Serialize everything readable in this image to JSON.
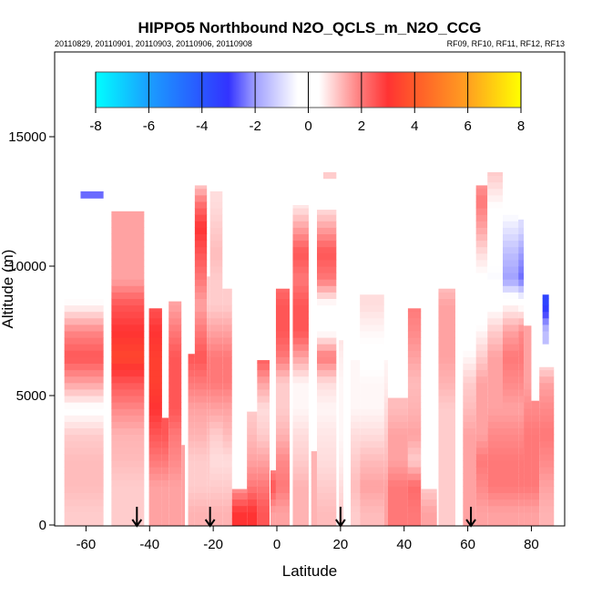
{
  "chart_data": {
    "type": "heatmap",
    "title": "HIPPO5 Northbound N2O_QCLS_m_N2O_CCG",
    "subtitle_left": "20110829, 20110901, 20110903, 20110906, 20110908",
    "subtitle_right": "RF09, RF10, RF11, RF12, RF13",
    "xlabel": "Latitude",
    "ylabel": "Altitude (m)",
    "xlim": [
      -70,
      90
    ],
    "ylim": [
      0,
      18300
    ],
    "xticks": [
      -60,
      -40,
      -20,
      0,
      20,
      40,
      60,
      80
    ],
    "yticks": [
      0,
      5000,
      10000,
      15000
    ],
    "colorbar": {
      "range": [
        -8,
        8
      ],
      "ticks": [
        -8,
        -6,
        -4,
        -2,
        0,
        2,
        4,
        6,
        8
      ],
      "stops": [
        {
          "v": -8,
          "c": "#00ffff"
        },
        {
          "v": -6,
          "c": "#1a9eff"
        },
        {
          "v": -4,
          "c": "#2a55ff"
        },
        {
          "v": -3,
          "c": "#3333ff"
        },
        {
          "v": -2,
          "c": "#a0a0ff"
        },
        {
          "v": -0.4,
          "c": "#ffffff"
        },
        {
          "v": 0.4,
          "c": "#ffffff"
        },
        {
          "v": 2,
          "c": "#ff7878"
        },
        {
          "v": 3,
          "c": "#ff3333"
        },
        {
          "v": 4,
          "c": "#ff5a2a"
        },
        {
          "v": 6,
          "c": "#ffa020"
        },
        {
          "v": 8,
          "c": "#ffff00"
        }
      ]
    },
    "bin_m": 1000,
    "columns": [
      {
        "lat": [
          -66.8,
          -54.5
        ],
        "alt": [
          0,
          12360
        ],
        "v": [
          1,
          1.2,
          1.2,
          1,
          0.3,
          1.5,
          2.5,
          1.8,
          0.5,
          0,
          0,
          0.2,
          0.3
        ]
      },
      {
        "lat": [
          -61.7,
          -54.5
        ],
        "alt": [
          12630,
          12890
        ],
        "v": [
          -2.5
        ]
      },
      {
        "lat": [
          -52,
          -41.7
        ],
        "alt": [
          0,
          12120
        ],
        "v": [
          1,
          1,
          1.2,
          1.3,
          1.8,
          2.5,
          3.5,
          3,
          2.5,
          1.5,
          1.5,
          1.5,
          1.5
        ]
      },
      {
        "lat": [
          -40.2,
          -36.1
        ],
        "alt": [
          0,
          8370
        ],
        "v": [
          1.5,
          1.5,
          2,
          2.5,
          3,
          3.3,
          3.3,
          3,
          2.5
        ]
      },
      {
        "lat": [
          -36.1,
          -34
        ],
        "alt": [
          0,
          4140
        ],
        "v": [
          1.5,
          1.5,
          2,
          2.5,
          2.5
        ]
      },
      {
        "lat": [
          -34,
          -30
        ],
        "alt": [
          0,
          8640
        ],
        "v": [
          1.5,
          1.5,
          1.8,
          2,
          2.5,
          2.5,
          2.5,
          2,
          1.5
        ]
      },
      {
        "lat": [
          -30,
          -28.9
        ],
        "alt": [
          0,
          3090
        ],
        "v": [
          1.5,
          1.5,
          1.5,
          1.5
        ]
      },
      {
        "lat": [
          -27.9,
          -25.8
        ],
        "alt": [
          0,
          6610
        ],
        "v": [
          1.3,
          1,
          1,
          1.3,
          1.5,
          2,
          2.5
        ]
      },
      {
        "lat": [
          -25.8,
          -22
        ],
        "alt": [
          0,
          13120
        ],
        "v": [
          1.3,
          1,
          1,
          1.3,
          1.5,
          2,
          2.5,
          2,
          1.5,
          2,
          2.5,
          3,
          2,
          0.5
        ]
      },
      {
        "lat": [
          -22,
          -21
        ],
        "alt": [
          0,
          9600
        ],
        "v": [
          1.3,
          1,
          1,
          1.2,
          1.5,
          2,
          2,
          1.5,
          1,
          1
        ]
      },
      {
        "lat": [
          -21,
          -17.1
        ],
        "alt": [
          0,
          12890
        ],
        "v": [
          1.3,
          1,
          0.8,
          1,
          1.5,
          2,
          2,
          1.5,
          1,
          1,
          1.2,
          1,
          0.8
        ]
      },
      {
        "lat": [
          -17.1,
          -14.1
        ],
        "alt": [
          0,
          9130
        ],
        "v": [
          1.3,
          1,
          0.8,
          1.2,
          1.5,
          2,
          2,
          1.5,
          1,
          1
        ]
      },
      {
        "lat": [
          -14.1,
          -9.4
        ],
        "alt": [
          0,
          1390
        ],
        "v": [
          3,
          1.5
        ]
      },
      {
        "lat": [
          -9.4,
          -6.2
        ],
        "alt": [
          0,
          4380
        ],
        "v": [
          3,
          2,
          1.5,
          1.2,
          1
        ]
      },
      {
        "lat": [
          -6.2,
          -2.3
        ],
        "alt": [
          0,
          6370
        ],
        "v": [
          2.5,
          2,
          1.5,
          1,
          0.8,
          1.5,
          2.5
        ]
      },
      {
        "lat": [
          -2,
          -0.3
        ],
        "alt": [
          0,
          2110
        ],
        "v": [
          1.5,
          2.5,
          1.5
        ]
      },
      {
        "lat": [
          -0.3,
          4
        ],
        "alt": [
          0,
          9130
        ],
        "v": [
          1.5,
          2,
          1.8,
          1.3,
          1,
          1,
          2,
          2.5,
          2.5,
          2
        ]
      },
      {
        "lat": [
          5,
          10
        ],
        "alt": [
          0,
          12360
        ],
        "v": [
          1.3,
          1.3,
          1,
          0.8,
          0.5,
          0.5,
          1.5,
          2.5,
          2.5,
          2,
          2.5,
          1.5,
          0.5
        ]
      },
      {
        "lat": [
          10.8,
          12.6
        ],
        "alt": [
          0,
          2850
        ],
        "v": [
          1.3,
          1.3,
          1.3
        ]
      },
      {
        "lat": [
          12.6,
          18.7
        ],
        "alt": [
          0,
          12180
        ],
        "v": [
          1.2,
          1,
          0.8,
          0.7,
          0.5,
          0.8,
          2,
          0.3,
          0.3,
          2,
          2.5,
          1.5,
          0.5
        ]
      },
      {
        "lat": [
          14.6,
          18.7
        ],
        "alt": [
          13390,
          13630
        ],
        "v": [
          1
        ]
      },
      {
        "lat": [
          19.5,
          20.9
        ],
        "alt": [
          0,
          7140
        ],
        "v": [
          1,
          0.8,
          0.6,
          0.5,
          0.5,
          0.5,
          0.6,
          0.8
        ]
      },
      {
        "lat": [
          23.2,
          26.1
        ],
        "alt": [
          0,
          6370
        ],
        "v": [
          1,
          1.2,
          1,
          0.8,
          0.5,
          0.5,
          0.5
        ]
      },
      {
        "lat": [
          26.1,
          33.7
        ],
        "alt": [
          0,
          8900
        ],
        "v": [
          1.2,
          1.5,
          1.2,
          0.8,
          0.5,
          0.5,
          0.3,
          0.5,
          0.8
        ]
      },
      {
        "lat": [
          33.7,
          34.9
        ],
        "alt": [
          0,
          6370
        ],
        "v": [
          1.5,
          1.5,
          1.2,
          1,
          0.8,
          0.6,
          0.5
        ]
      },
      {
        "lat": [
          34.9,
          41.2
        ],
        "alt": [
          0,
          4910
        ],
        "v": [
          2,
          2,
          1.5,
          1.5,
          1.2
        ]
      },
      {
        "lat": [
          41.2,
          45.3
        ],
        "alt": [
          0,
          8370
        ],
        "v": [
          2,
          2.2,
          1,
          1.5,
          1.3,
          1.2,
          1.5,
          1.8,
          2
        ]
      },
      {
        "lat": [
          45.3,
          50.3
        ],
        "alt": [
          0,
          1390
        ],
        "v": [
          1.5,
          1
        ]
      },
      {
        "lat": [
          50.8,
          56.1
        ],
        "alt": [
          0,
          9130
        ],
        "v": [
          1,
          1,
          1,
          1,
          1,
          1.3,
          1.5,
          1.5,
          1.5,
          1
        ]
      },
      {
        "lat": [
          58.5,
          62.6
        ],
        "alt": [
          0,
          8900
        ],
        "v": [
          1.5,
          1.5,
          1.5,
          1.5,
          1.2,
          1,
          0.5,
          0.2,
          0.3
        ]
      },
      {
        "lat": [
          62.6,
          66.2
        ],
        "alt": [
          0,
          13120
        ],
        "v": [
          1.5,
          1.8,
          2,
          1.5,
          1.5,
          1.5,
          1,
          0.5,
          0,
          0.3,
          0.8,
          1.5,
          2,
          1.5
        ]
      },
      {
        "lat": [
          66.2,
          71
        ],
        "alt": [
          0,
          13630
        ],
        "v": [
          1.5,
          2,
          2,
          1.8,
          1.5,
          1.5,
          1.5,
          1,
          0.3,
          -0.5,
          -0.3,
          0,
          0.5,
          1
        ]
      },
      {
        "lat": [
          71,
          75.9
        ],
        "alt": [
          0,
          13630
        ],
        "v": [
          1.5,
          2,
          2,
          1.8,
          1.5,
          1.8,
          2,
          1.5,
          0.5,
          -2,
          -1.5,
          -0.8,
          0,
          0.3
        ]
      },
      {
        "lat": [
          75.9,
          77.6
        ],
        "alt": [
          0,
          11800
        ],
        "v": [
          1.5,
          2,
          2,
          1.8,
          1.5,
          1.8,
          2,
          1.8,
          0.3,
          -2.5,
          -2,
          -1
        ]
      },
      {
        "lat": [
          77.6,
          80
        ],
        "alt": [
          0,
          7700
        ],
        "v": [
          1.5,
          2,
          2,
          2,
          1.8,
          1.5,
          1.5,
          1.5
        ]
      },
      {
        "lat": [
          80,
          82.5
        ],
        "alt": [
          0,
          4800
        ],
        "v": [
          1.5,
          2,
          2,
          2,
          1.8
        ]
      },
      {
        "lat": [
          82.5,
          87.1
        ],
        "alt": [
          0,
          6100
        ],
        "v": [
          1.3,
          1.5,
          1.8,
          2,
          1.8,
          1.5,
          0.5
        ]
      },
      {
        "lat": [
          83.5,
          85.5
        ],
        "alt": [
          7000,
          8900
        ],
        "v": [
          -1.5,
          -3.5
        ]
      }
    ],
    "profile_markers_lat": [
      -44,
      -21,
      20,
      61
    ]
  }
}
